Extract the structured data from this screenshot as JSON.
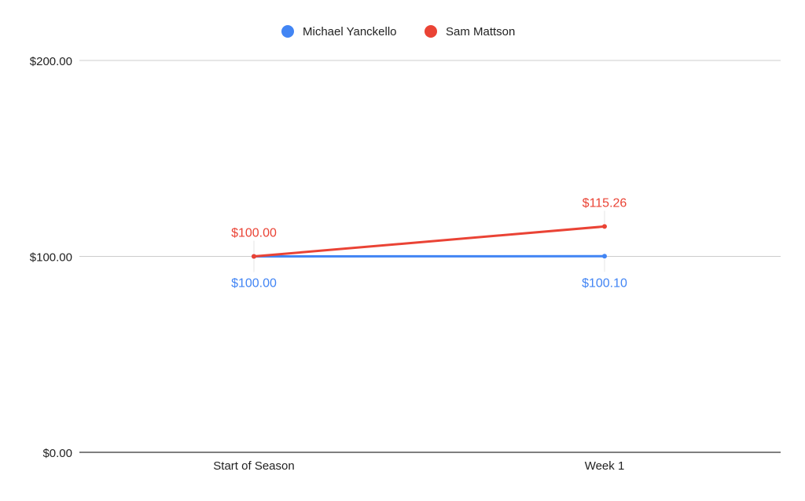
{
  "chart_data": {
    "type": "line",
    "title": "",
    "xlabel": "",
    "ylabel": "",
    "categories": [
      "Start of Season",
      "Week 1"
    ],
    "ylim": [
      0,
      200
    ],
    "yticks": [
      {
        "value": 0,
        "label": "$0.00"
      },
      {
        "value": 100,
        "label": "$100.00"
      },
      {
        "value": 200,
        "label": "$200.00"
      }
    ],
    "grid": true,
    "legend_position": "top",
    "series": [
      {
        "name": "Michael Yanckello",
        "color": "#4285f4",
        "values": [
          100.0,
          100.1
        ],
        "labels": [
          "$100.00",
          "$100.10"
        ]
      },
      {
        "name": "Sam Mattson",
        "color": "#ea4335",
        "values": [
          100.0,
          115.26
        ],
        "labels": [
          "$100.00",
          "$115.26"
        ]
      }
    ]
  }
}
